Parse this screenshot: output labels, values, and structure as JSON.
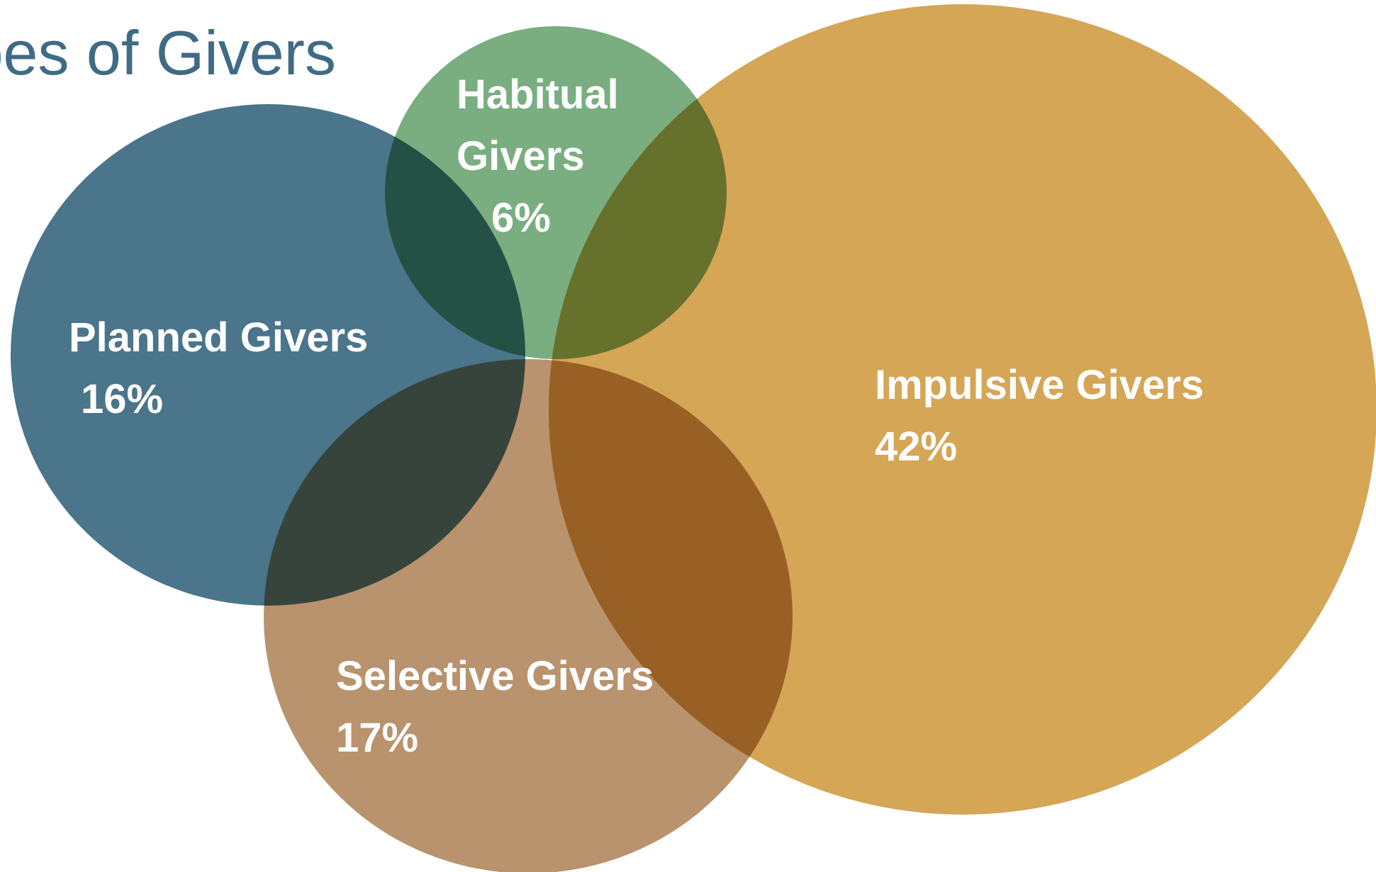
{
  "chart_data": {
    "type": "venn",
    "title": "Types of Givers",
    "categories": [
      "Planned Givers",
      "Habitual Givers",
      "Impulsive Givers",
      "Selective Givers"
    ],
    "values": [
      16,
      6,
      42,
      17
    ],
    "value_labels": [
      "16%",
      "6%",
      "42%",
      "17%"
    ],
    "colors": [
      "#4a758b",
      "#7aae80",
      "#d4a656",
      "#b8936e"
    ]
  }
}
